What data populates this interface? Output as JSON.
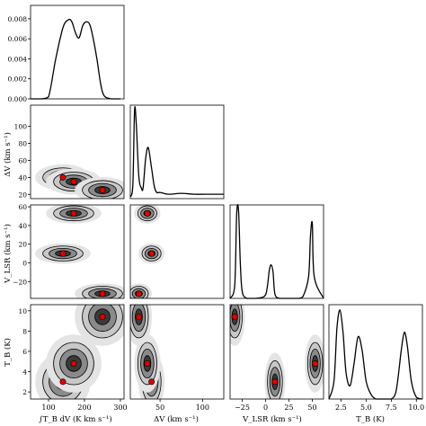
{
  "chart_data": {
    "type": "corner",
    "parameters": [
      {
        "key": "intTB",
        "label": "∫T_B dV (K km s⁻¹)",
        "range": [
          50,
          310
        ],
        "ticks": [
          100,
          200,
          300
        ]
      },
      {
        "key": "dV",
        "label": "ΔV (km s⁻¹)",
        "range": [
          15,
          125
        ],
        "ticks": [
          20,
          40,
          60,
          80,
          100
        ]
      },
      {
        "key": "vlsr",
        "label": "V_LSR (km s⁻¹)",
        "range": [
          -38,
          62
        ],
        "ticks": [
          -20,
          0,
          20,
          40,
          60
        ]
      },
      {
        "key": "TB",
        "label": "T_B (K)",
        "range": [
          1.3,
          10.6
        ],
        "ticks": [
          2,
          4,
          6,
          8,
          10
        ]
      }
    ],
    "axis_tick_labels": {
      "intTB_x": [
        "100",
        "200",
        "300"
      ],
      "dV_x": [
        "50",
        "100"
      ],
      "dV_y": [
        "20",
        "40",
        "60",
        "80",
        "100"
      ],
      "vlsr_x": [
        "−25",
        "0",
        "25",
        "50"
      ],
      "vlsr_y": [
        "−20",
        "0",
        "20",
        "40",
        "60"
      ],
      "TB_x": [
        "2.5",
        "5.0",
        "7.5",
        "10.0"
      ],
      "TB_y": [
        "2",
        "4",
        "6",
        "8",
        "10"
      ],
      "density_y": [
        "0.000",
        "0.002",
        "0.004",
        "0.006",
        "0.008"
      ]
    },
    "marginals": [
      {
        "param": "intTB",
        "ylim": [
          0,
          0.0088
        ],
        "x": [
          50,
          80,
          100,
          120,
          140,
          155,
          165,
          175,
          185,
          195,
          205,
          215,
          225,
          235,
          245,
          255,
          275,
          300
        ],
        "density": [
          0.0,
          0.0,
          0.0002,
          0.004,
          0.0071,
          0.0079,
          0.0077,
          0.0066,
          0.0061,
          0.0073,
          0.0077,
          0.0074,
          0.0059,
          0.0039,
          0.0015,
          0.0003,
          0.0,
          0.0
        ]
      },
      {
        "param": "dV",
        "x": [
          15,
          18,
          20,
          22,
          25,
          28,
          30,
          33,
          36,
          40,
          43,
          46,
          50,
          60,
          75,
          90,
          110,
          125
        ],
        "density": [
          0.02,
          0.15,
          1.0,
          0.85,
          0.25,
          0.12,
          0.12,
          0.45,
          0.58,
          0.35,
          0.15,
          0.07,
          0.07,
          0.05,
          0.06,
          0.05,
          0.05,
          0.05
        ]
      },
      {
        "param": "vlsr",
        "x": [
          -38,
          -33,
          -31,
          -29,
          -27,
          -25,
          -20,
          -10,
          0,
          4,
          6,
          8,
          10,
          15,
          25,
          35,
          40,
          46,
          48,
          50,
          52,
          62
        ],
        "density": [
          0.0,
          0.15,
          0.95,
          1.0,
          0.4,
          0.08,
          0.0,
          0.0,
          0.04,
          0.32,
          0.38,
          0.3,
          0.05,
          0.0,
          0.0,
          0.0,
          0.02,
          0.25,
          0.7,
          0.85,
          0.25,
          0.0
        ]
      },
      {
        "param": "TB",
        "x": [
          1.3,
          1.8,
          2.1,
          2.4,
          2.7,
          3.0,
          3.4,
          3.8,
          4.2,
          4.6,
          5.0,
          5.5,
          6.0,
          6.5,
          7.0,
          7.5,
          8.0,
          8.5,
          8.8,
          9.1,
          9.5,
          10.0,
          10.6
        ],
        "density": [
          0.0,
          0.2,
          0.8,
          1.0,
          0.75,
          0.3,
          0.15,
          0.4,
          0.7,
          0.55,
          0.2,
          0.05,
          0.0,
          0.0,
          0.0,
          0.0,
          0.1,
          0.55,
          0.75,
          0.6,
          0.2,
          0.02,
          0.0
        ]
      }
    ],
    "modes_red_points": [
      {
        "intTB": 140,
        "dV": 40,
        "vlsr": 10,
        "TB": 3.0
      },
      {
        "intTB": 170,
        "dV": 35,
        "vlsr": 53,
        "TB": 4.8
      },
      {
        "intTB": 250,
        "dV": 25,
        "vlsr": -33,
        "TB": 9.4
      }
    ]
  }
}
